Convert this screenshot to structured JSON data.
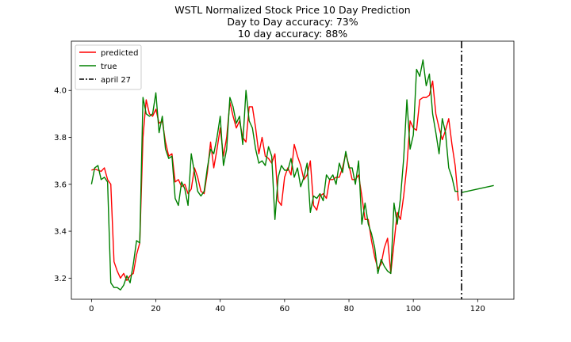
{
  "chart_data": {
    "type": "line",
    "title": "WSTL Normalized Stock Price 10 Day Prediction",
    "subtitle_lines": [
      "Day to Day accuracy: 73%",
      "10 day accuracy: 88%"
    ],
    "xlabel": "",
    "ylabel": "",
    "xlim": [
      -6.25,
      131.25
    ],
    "ylim": [
      3.11,
      4.21
    ],
    "x_ticks": [
      0,
      20,
      40,
      60,
      80,
      100,
      120
    ],
    "y_ticks": [
      3.2,
      3.4,
      3.6,
      3.8,
      4.0
    ],
    "grid": false,
    "legend_position": "top-left",
    "series": [
      {
        "name": "predicted",
        "color": "#ff0000",
        "style": "solid",
        "x_start": 0,
        "values": [
          3.66,
          3.665,
          3.66,
          3.655,
          3.67,
          3.62,
          3.6,
          3.27,
          3.23,
          3.2,
          3.22,
          3.19,
          3.21,
          3.22,
          3.3,
          3.35,
          3.8,
          3.96,
          3.9,
          3.89,
          3.92,
          3.86,
          3.87,
          3.78,
          3.72,
          3.73,
          3.61,
          3.62,
          3.59,
          3.6,
          3.56,
          3.58,
          3.67,
          3.63,
          3.57,
          3.56,
          3.65,
          3.78,
          3.67,
          3.75,
          3.84,
          3.72,
          3.8,
          3.95,
          3.89,
          3.84,
          3.87,
          3.8,
          3.78,
          3.93,
          3.93,
          3.84,
          3.73,
          3.8,
          3.72,
          3.71,
          3.69,
          3.73,
          3.53,
          3.51,
          3.63,
          3.67,
          3.64,
          3.77,
          3.72,
          3.68,
          3.62,
          3.64,
          3.7,
          3.51,
          3.49,
          3.55,
          3.56,
          3.54,
          3.62,
          3.62,
          3.63,
          3.63,
          3.67,
          3.73,
          3.68,
          3.62,
          3.62,
          3.64,
          3.55,
          3.45,
          3.45,
          3.36,
          3.29,
          3.24,
          3.26,
          3.33,
          3.37,
          3.22,
          3.35,
          3.48,
          3.45,
          3.55,
          3.68,
          3.87,
          3.84,
          3.83,
          3.96,
          3.97,
          3.97,
          3.98,
          4.04,
          3.9,
          3.84,
          3.79,
          3.83,
          3.88,
          3.77,
          3.68,
          3.53
        ]
      },
      {
        "name": "true",
        "color": "#008000",
        "style": "solid",
        "x_start": 0,
        "values": [
          3.6,
          3.67,
          3.68,
          3.62,
          3.63,
          3.61,
          3.18,
          3.16,
          3.16,
          3.15,
          3.17,
          3.21,
          3.18,
          3.26,
          3.36,
          3.35,
          3.97,
          3.9,
          3.89,
          3.9,
          3.99,
          3.82,
          3.89,
          3.75,
          3.71,
          3.72,
          3.54,
          3.51,
          3.61,
          3.58,
          3.51,
          3.73,
          3.65,
          3.57,
          3.55,
          3.57,
          3.67,
          3.75,
          3.73,
          3.8,
          3.89,
          3.68,
          3.75,
          3.97,
          3.93,
          3.86,
          3.89,
          3.77,
          4.0,
          3.87,
          3.84,
          3.75,
          3.69,
          3.7,
          3.68,
          3.76,
          3.72,
          3.45,
          3.63,
          3.68,
          3.66,
          3.66,
          3.71,
          3.63,
          3.67,
          3.59,
          3.63,
          3.69,
          3.48,
          3.55,
          3.54,
          3.56,
          3.53,
          3.64,
          3.62,
          3.64,
          3.6,
          3.69,
          3.65,
          3.74,
          3.67,
          3.67,
          3.6,
          3.7,
          3.43,
          3.52,
          3.43,
          3.39,
          3.33,
          3.22,
          3.28,
          3.25,
          3.23,
          3.22,
          3.52,
          3.43,
          3.54,
          3.71,
          3.96,
          3.75,
          3.81,
          4.09,
          4.06,
          4.13,
          4.02,
          4.07,
          3.9,
          3.82,
          3.73,
          3.88,
          3.82,
          3.67,
          3.63,
          3.57,
          3.57
        ]
      },
      {
        "name": "true",
        "color": "#008000",
        "style": "solid",
        "x": [
          115,
          125
        ],
        "values": [
          3.565,
          3.595
        ]
      },
      {
        "name": "april 27",
        "color": "#000000",
        "style": "dashdot",
        "vertical_line_x": 115
      }
    ]
  }
}
